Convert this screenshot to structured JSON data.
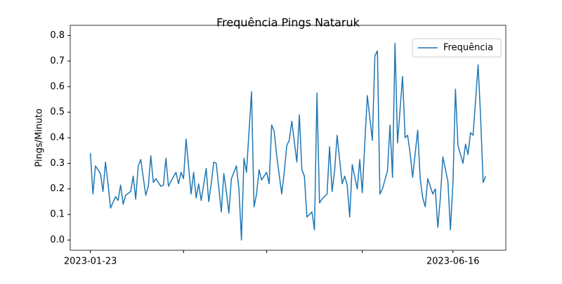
{
  "chart_data": {
    "type": "line",
    "title": "Frequência Pings Nataruk",
    "y_label": "Pings/Minuto",
    "x": [
      "2023-01-23",
      "2023-01-24",
      "2023-01-25",
      "2023-01-27",
      "2023-01-28",
      "2023-01-29",
      "2023-01-30",
      "2023-01-31",
      "2023-02-02",
      "2023-02-03",
      "2023-02-04",
      "2023-02-05",
      "2023-02-06",
      "2023-02-08",
      "2023-02-09",
      "2023-02-10",
      "2023-02-11",
      "2023-02-12",
      "2023-02-14",
      "2023-02-15",
      "2023-02-16",
      "2023-02-17",
      "2023-02-18",
      "2023-02-20",
      "2023-02-21",
      "2023-02-22",
      "2023-02-23",
      "2023-02-24",
      "2023-02-26",
      "2023-02-27",
      "2023-02-28",
      "2023-03-01",
      "2023-03-02",
      "2023-03-04",
      "2023-03-05",
      "2023-03-06",
      "2023-03-07",
      "2023-03-08",
      "2023-03-10",
      "2023-03-11",
      "2023-03-12",
      "2023-03-13",
      "2023-03-14",
      "2023-03-16",
      "2023-03-17",
      "2023-03-18",
      "2023-03-19",
      "2023-03-20",
      "2023-03-22",
      "2023-03-23",
      "2023-03-24",
      "2023-03-25",
      "2023-03-26",
      "2023-03-28",
      "2023-03-29",
      "2023-03-30",
      "2023-03-31",
      "2023-04-01",
      "2023-04-03",
      "2023-04-04",
      "2023-04-05",
      "2023-04-06",
      "2023-04-07",
      "2023-04-09",
      "2023-04-10",
      "2023-04-11",
      "2023-04-12",
      "2023-04-13",
      "2023-04-15",
      "2023-04-16",
      "2023-04-17",
      "2023-04-18",
      "2023-04-19",
      "2023-04-21",
      "2023-04-22",
      "2023-04-23",
      "2023-04-24",
      "2023-04-25",
      "2023-04-27",
      "2023-04-28",
      "2023-04-29",
      "2023-04-30",
      "2023-05-01",
      "2023-05-03",
      "2023-05-04",
      "2023-05-05",
      "2023-05-06",
      "2023-05-07",
      "2023-05-09",
      "2023-05-10",
      "2023-05-11",
      "2023-05-12",
      "2023-05-13",
      "2023-05-15",
      "2023-05-16",
      "2023-05-17",
      "2023-05-18",
      "2023-05-19",
      "2023-05-21",
      "2023-05-22",
      "2023-05-23",
      "2023-05-24",
      "2023-05-25",
      "2023-05-27",
      "2023-05-28",
      "2023-05-29",
      "2023-05-30",
      "2023-05-31",
      "2023-06-02",
      "2023-06-03",
      "2023-06-04",
      "2023-06-05",
      "2023-06-06",
      "2023-06-08",
      "2023-06-09",
      "2023-06-10",
      "2023-06-11",
      "2023-06-12",
      "2023-06-14",
      "2023-06-15",
      "2023-06-16",
      "2023-06-17",
      "2023-06-18",
      "2023-06-20",
      "2023-06-21",
      "2023-06-22",
      "2023-06-23",
      "2023-06-24",
      "2023-06-26",
      "2023-06-27",
      "2023-06-28",
      "2023-06-29"
    ],
    "series": [
      {
        "name": "Frequência",
        "color": "#1f77b4",
        "values": [
          0.34,
          0.18,
          0.29,
          0.26,
          0.19,
          0.305,
          0.22,
          0.125,
          0.17,
          0.155,
          0.215,
          0.14,
          0.175,
          0.19,
          0.25,
          0.16,
          0.29,
          0.315,
          0.175,
          0.21,
          0.33,
          0.225,
          0.24,
          0.21,
          0.215,
          0.32,
          0.21,
          0.23,
          0.265,
          0.22,
          0.265,
          0.24,
          0.395,
          0.18,
          0.265,
          0.165,
          0.22,
          0.155,
          0.28,
          0.15,
          0.22,
          0.305,
          0.3,
          0.11,
          0.26,
          0.19,
          0.105,
          0.24,
          0.29,
          0.2,
          0.0,
          0.32,
          0.265,
          0.58,
          0.13,
          0.18,
          0.275,
          0.235,
          0.265,
          0.22,
          0.45,
          0.425,
          0.33,
          0.18,
          0.265,
          0.37,
          0.39,
          0.465,
          0.305,
          0.49,
          0.275,
          0.25,
          0.09,
          0.11,
          0.04,
          0.575,
          0.145,
          0.16,
          0.18,
          0.365,
          0.19,
          0.27,
          0.41,
          0.22,
          0.25,
          0.215,
          0.09,
          0.295,
          0.2,
          0.315,
          0.185,
          0.38,
          0.565,
          0.39,
          0.72,
          0.74,
          0.18,
          0.2,
          0.27,
          0.45,
          0.245,
          0.77,
          0.38,
          0.64,
          0.4,
          0.41,
          0.34,
          0.245,
          0.43,
          0.24,
          0.165,
          0.13,
          0.24,
          0.18,
          0.2,
          0.05,
          0.165,
          0.325,
          0.23,
          0.04,
          0.22,
          0.59,
          0.37,
          0.3,
          0.375,
          0.335,
          0.42,
          0.41,
          0.685,
          0.48,
          0.225,
          0.25
        ]
      }
    ],
    "xlim": [
      "2023-01-15",
      "2023-07-07"
    ],
    "xticks": [
      "2023-01-23",
      {
        "value": "2023-03-01",
        "label": null
      },
      {
        "value": "2023-04-03",
        "label": null
      },
      {
        "value": "2023-05-11",
        "label": null
      },
      "2023-06-16"
    ],
    "ylim": [
      -0.04,
      0.84
    ],
    "yticks": [
      {
        "value": 0,
        "label": "0.0"
      },
      0.1,
      0.2,
      0.3,
      0.4,
      0.5,
      0.6,
      0.7,
      0.8
    ],
    "legend": "upper right"
  }
}
